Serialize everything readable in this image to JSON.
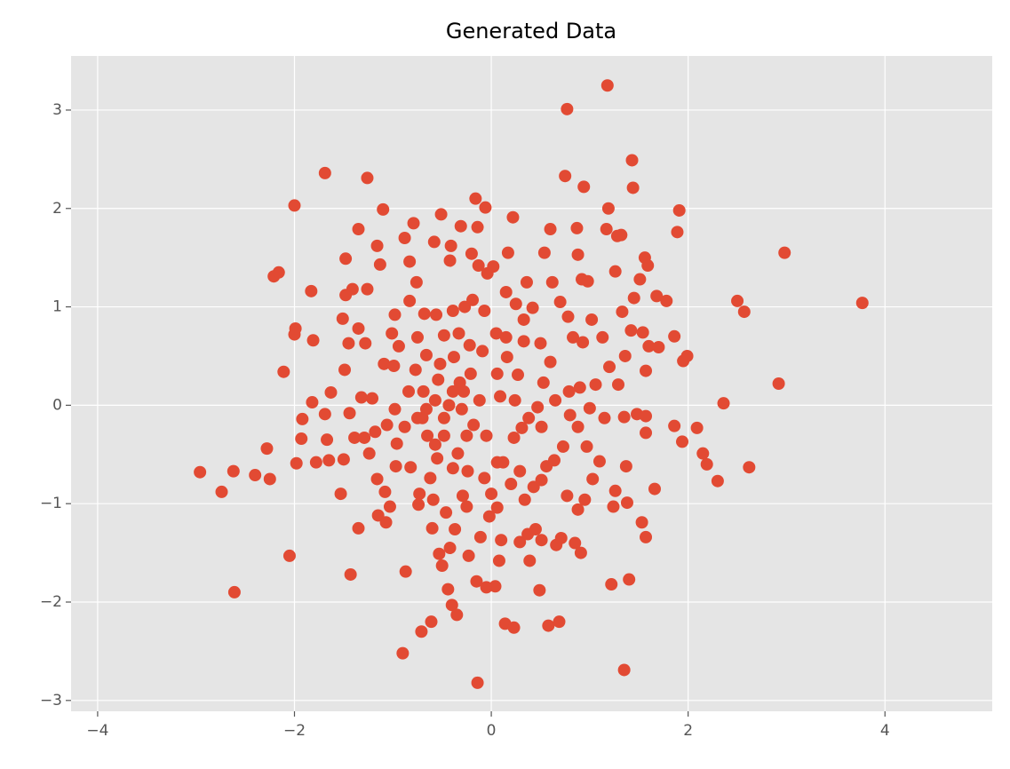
{
  "chart_data": {
    "type": "scatter",
    "title": "Generated Data",
    "color": "#E24A33",
    "grid": true,
    "xlim": [
      -4.27,
      5.09
    ],
    "ylim": [
      -3.11,
      3.55
    ],
    "xticks": [
      {
        "value": -4,
        "label": "−4"
      },
      {
        "value": -2,
        "label": "−2"
      },
      0,
      2,
      4
    ],
    "yticks": [
      {
        "value": -3,
        "label": "−3"
      },
      {
        "value": -2,
        "label": "−2"
      },
      {
        "value": -1,
        "label": "−1"
      },
      0,
      1,
      2,
      3
    ],
    "x": [
      -2.96,
      -2.74,
      -2.62,
      -2.61,
      -2.4,
      -2.28,
      -2.25,
      -2.21,
      -2.16,
      -2.11,
      -2.05,
      -2.0,
      -2.0,
      -1.99,
      -1.98,
      -1.93,
      -1.92,
      -1.83,
      -1.82,
      -1.81,
      -1.78,
      -1.69,
      -1.69,
      -1.67,
      -1.65,
      -1.63,
      -1.53,
      -1.51,
      -1.5,
      -1.49,
      -1.48,
      -1.48,
      -1.45,
      -1.44,
      -1.43,
      -1.41,
      -1.39,
      -1.35,
      -1.35,
      -1.35,
      -1.32,
      -1.29,
      -1.28,
      -1.26,
      -1.26,
      -1.24,
      -1.21,
      -1.18,
      -1.16,
      -1.16,
      -1.15,
      -1.13,
      -1.1,
      -1.09,
      -1.08,
      -1.07,
      -1.06,
      -1.03,
      -1.01,
      -0.99,
      -0.98,
      -0.97,
      -0.96,
      -0.94,
      -0.9,
      -0.88,
      -0.87,
      -0.83,
      -0.83,
      -0.82,
      -0.79,
      -0.77,
      -0.76,
      -0.75,
      -0.74,
      -0.73,
      -0.71,
      -0.7,
      -0.69,
      -0.68,
      -0.65,
      -0.62,
      -0.61,
      -0.6,
      -0.59,
      -0.58,
      -0.57,
      -0.56,
      -0.55,
      -0.54,
      -0.53,
      -0.51,
      -0.5,
      -0.48,
      -0.46,
      -0.44,
      -0.43,
      -0.42,
      -0.42,
      -0.41,
      -0.4,
      -0.39,
      -0.38,
      -0.37,
      -0.35,
      -0.33,
      -0.32,
      -0.31,
      -0.29,
      -0.28,
      -0.27,
      -0.25,
      -0.24,
      -0.23,
      -0.22,
      -0.2,
      -0.19,
      -0.18,
      -0.16,
      -0.15,
      -0.14,
      -0.14,
      -0.13,
      -0.11,
      -0.09,
      -0.07,
      -0.06,
      -0.05,
      -0.05,
      -0.04,
      -0.02,
      0.0,
      0.02,
      0.04,
      0.05,
      0.06,
      0.08,
      0.09,
      0.1,
      0.12,
      0.14,
      0.15,
      0.16,
      0.17,
      0.2,
      0.22,
      0.23,
      0.23,
      0.25,
      0.27,
      0.29,
      0.31,
      0.33,
      0.34,
      0.36,
      0.37,
      0.39,
      0.42,
      0.43,
      0.45,
      0.47,
      0.49,
      0.5,
      0.51,
      0.53,
      0.54,
      0.56,
      0.58,
      0.6,
      0.6,
      0.62,
      0.64,
      0.66,
      0.69,
      0.7,
      0.71,
      0.73,
      0.75,
      0.77,
      0.77,
      0.78,
      0.8,
      0.83,
      0.85,
      0.87,
      0.88,
      0.88,
      0.9,
      0.91,
      0.92,
      0.93,
      0.94,
      0.95,
      0.97,
      0.98,
      1.0,
      1.02,
      1.03,
      1.06,
      1.1,
      1.13,
      1.15,
      1.17,
      1.18,
      1.19,
      1.2,
      1.22,
      1.24,
      1.26,
      1.26,
      1.28,
      1.29,
      1.32,
      1.33,
      1.35,
      1.35,
      1.36,
      1.37,
      1.38,
      1.4,
      1.42,
      1.43,
      1.44,
      1.45,
      1.48,
      1.51,
      1.54,
      1.56,
      1.57,
      1.57,
      1.57,
      1.57,
      1.53,
      1.59,
      1.6,
      1.66,
      1.68,
      1.7,
      1.78,
      1.86,
      1.86,
      1.89,
      1.91,
      1.94,
      1.95,
      1.99,
      2.09,
      2.15,
      2.19,
      2.3,
      2.36,
      2.5,
      2.57,
      2.62,
      2.92,
      2.98,
      3.77,
      -0.66,
      -0.57,
      -0.48,
      -0.39,
      -0.3,
      -0.21,
      -0.12,
      -0.25,
      -0.34,
      -0.48,
      -0.75,
      -0.84,
      -0.88,
      -0.98,
      0.06,
      0.24,
      0.38,
      0.51,
      0.65,
      0.79,
      0.88,
      0.15,
      0.33,
      -0.07,
      -0.39,
      0.06,
      0.29,
      0.51,
      -0.66,
      -0.52
    ],
    "values": [
      -0.68,
      -0.88,
      -0.67,
      -1.9,
      -0.71,
      -0.44,
      -0.75,
      1.31,
      1.35,
      0.34,
      -1.53,
      2.03,
      0.72,
      0.78,
      -0.59,
      -0.34,
      -0.14,
      1.16,
      0.03,
      0.66,
      -0.58,
      2.36,
      -0.09,
      -0.35,
      -0.56,
      0.13,
      -0.9,
      0.88,
      -0.55,
      0.36,
      1.49,
      1.12,
      0.63,
      -0.08,
      -1.72,
      1.18,
      -0.33,
      1.79,
      -1.25,
      0.78,
      0.08,
      -0.33,
      0.63,
      2.31,
      1.18,
      -0.49,
      0.07,
      -0.27,
      1.62,
      -0.75,
      -1.12,
      1.43,
      1.99,
      0.42,
      -0.88,
      -1.19,
      -0.2,
      -1.03,
      0.73,
      0.4,
      0.92,
      -0.62,
      -0.39,
      0.6,
      -2.52,
      1.7,
      -1.69,
      1.46,
      1.06,
      -0.63,
      1.85,
      0.36,
      1.25,
      0.69,
      -1.01,
      -0.9,
      -2.3,
      -0.13,
      0.14,
      0.93,
      -0.31,
      -0.74,
      -2.2,
      -1.25,
      -0.96,
      1.66,
      -0.4,
      0.92,
      -0.54,
      0.26,
      -1.51,
      1.94,
      -1.63,
      0.71,
      -1.09,
      -1.87,
      0.0,
      -1.45,
      1.47,
      1.62,
      -2.03,
      -0.64,
      0.49,
      -1.26,
      -2.13,
      0.73,
      0.23,
      1.82,
      -0.92,
      0.14,
      1.0,
      -1.03,
      -0.67,
      -1.53,
      0.61,
      1.54,
      1.07,
      -0.2,
      2.1,
      -1.79,
      1.81,
      -2.82,
      1.42,
      -1.34,
      0.55,
      -0.74,
      2.01,
      -1.85,
      -0.31,
      1.34,
      -1.13,
      -0.9,
      1.41,
      -1.84,
      0.73,
      -1.04,
      -1.58,
      0.09,
      -1.37,
      -0.58,
      -2.22,
      1.15,
      0.49,
      1.55,
      -0.8,
      1.91,
      -0.33,
      -2.26,
      1.03,
      0.31,
      -1.39,
      -0.23,
      0.65,
      -0.96,
      1.25,
      -1.31,
      -1.58,
      0.99,
      -0.83,
      -1.26,
      -0.02,
      -1.88,
      0.63,
      -1.37,
      0.23,
      1.55,
      -0.62,
      -2.24,
      1.79,
      0.44,
      1.25,
      -0.56,
      -1.42,
      -2.2,
      1.05,
      -1.35,
      -0.42,
      2.33,
      3.01,
      -0.92,
      0.9,
      -0.1,
      0.69,
      -1.4,
      1.8,
      -1.06,
      1.53,
      0.18,
      -1.5,
      1.28,
      0.64,
      2.22,
      -0.96,
      -0.42,
      1.26,
      -0.03,
      0.87,
      -0.75,
      0.21,
      -0.57,
      0.69,
      -0.13,
      1.79,
      3.25,
      2.0,
      0.39,
      -1.82,
      -1.03,
      -0.87,
      1.36,
      1.72,
      0.21,
      1.73,
      0.95,
      -2.69,
      -0.12,
      0.5,
      -0.62,
      -0.99,
      -1.77,
      0.76,
      2.49,
      2.21,
      1.09,
      -0.09,
      1.28,
      0.74,
      1.5,
      0.35,
      -0.11,
      -0.28,
      -1.34,
      -1.19,
      1.42,
      0.6,
      -0.85,
      1.11,
      0.59,
      1.06,
      0.7,
      -0.21,
      1.76,
      1.98,
      -0.37,
      0.45,
      0.5,
      -0.23,
      -0.49,
      -0.6,
      -0.77,
      0.02,
      1.06,
      0.95,
      -0.63,
      0.22,
      1.55,
      1.04,
      -0.04,
      0.05,
      -0.13,
      0.14,
      -0.04,
      0.32,
      0.05,
      -0.31,
      -0.49,
      -0.31,
      -0.13,
      0.14,
      -0.22,
      -0.04,
      0.32,
      0.05,
      -0.13,
      -0.22,
      0.05,
      0.14,
      -0.22,
      0.69,
      0.87,
      0.96,
      0.96,
      -0.58,
      -0.67,
      -0.76,
      0.51,
      0.42
    ]
  }
}
